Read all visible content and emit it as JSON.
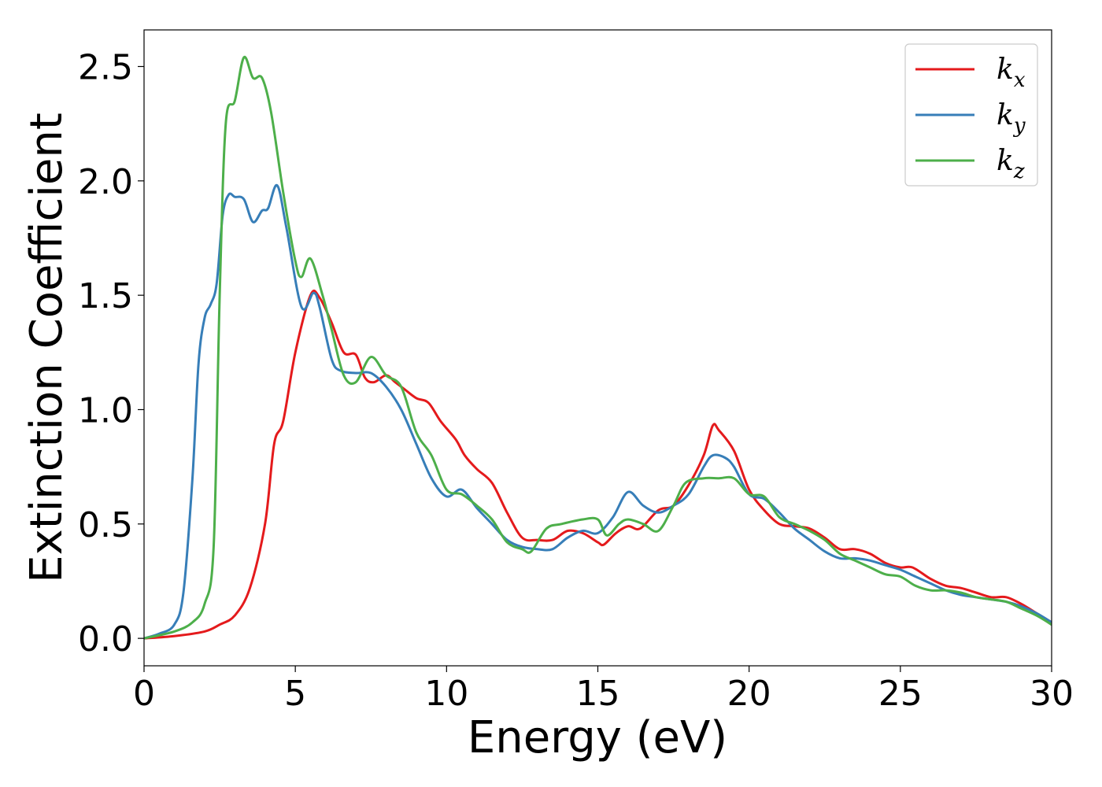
{
  "chart_data": {
    "type": "line",
    "xlabel": "Energy (eV)",
    "ylabel": "Extinction Coefficient",
    "xlim": [
      0,
      30
    ],
    "ylim": [
      -0.12,
      2.66
    ],
    "xticks": [
      0,
      5,
      10,
      15,
      20,
      25,
      30
    ],
    "xtick_labels": [
      "0",
      "5",
      "10",
      "15",
      "20",
      "25",
      "30"
    ],
    "yticks": [
      0.0,
      0.5,
      1.0,
      1.5,
      2.0,
      2.5
    ],
    "ytick_labels": [
      "0.0",
      "0.5",
      "1.0",
      "1.5",
      "2.0",
      "2.5"
    ],
    "grid": false,
    "legend_position": "top-right",
    "series": [
      {
        "name": "k",
        "subscript": "x",
        "color": "#e41a1c",
        "points": [
          [
            0,
            0
          ],
          [
            1,
            0.01
          ],
          [
            2,
            0.03
          ],
          [
            2.5,
            0.06
          ],
          [
            3,
            0.1
          ],
          [
            3.5,
            0.22
          ],
          [
            4,
            0.5
          ],
          [
            4.3,
            0.85
          ],
          [
            4.6,
            0.95
          ],
          [
            5,
            1.25
          ],
          [
            5.5,
            1.5
          ],
          [
            5.8,
            1.49
          ],
          [
            6.2,
            1.38
          ],
          [
            6.6,
            1.25
          ],
          [
            7,
            1.24
          ],
          [
            7.3,
            1.14
          ],
          [
            7.6,
            1.12
          ],
          [
            8,
            1.15
          ],
          [
            8.3,
            1.12
          ],
          [
            8.6,
            1.09
          ],
          [
            9,
            1.05
          ],
          [
            9.4,
            1.03
          ],
          [
            9.8,
            0.95
          ],
          [
            10.3,
            0.87
          ],
          [
            10.6,
            0.8
          ],
          [
            11,
            0.74
          ],
          [
            11.5,
            0.68
          ],
          [
            12,
            0.55
          ],
          [
            12.5,
            0.44
          ],
          [
            13,
            0.43
          ],
          [
            13.5,
            0.43
          ],
          [
            14,
            0.47
          ],
          [
            14.5,
            0.46
          ],
          [
            15,
            0.42
          ],
          [
            15.2,
            0.41
          ],
          [
            15.6,
            0.46
          ],
          [
            16,
            0.49
          ],
          [
            16.4,
            0.48
          ],
          [
            17,
            0.56
          ],
          [
            17.5,
            0.58
          ],
          [
            18,
            0.67
          ],
          [
            18.5,
            0.8
          ],
          [
            18.8,
            0.93
          ],
          [
            19,
            0.91
          ],
          [
            19.5,
            0.82
          ],
          [
            20,
            0.65
          ],
          [
            20.5,
            0.56
          ],
          [
            21,
            0.5
          ],
          [
            21.5,
            0.49
          ],
          [
            22,
            0.48
          ],
          [
            22.5,
            0.44
          ],
          [
            23,
            0.39
          ],
          [
            23.5,
            0.39
          ],
          [
            24,
            0.37
          ],
          [
            24.5,
            0.33
          ],
          [
            25,
            0.31
          ],
          [
            25.4,
            0.31
          ],
          [
            26,
            0.26
          ],
          [
            26.5,
            0.23
          ],
          [
            27,
            0.22
          ],
          [
            27.5,
            0.2
          ],
          [
            28,
            0.18
          ],
          [
            28.5,
            0.18
          ],
          [
            29,
            0.15
          ],
          [
            29.5,
            0.11
          ],
          [
            30,
            0.07
          ]
        ]
      },
      {
        "name": "k",
        "subscript": "y",
        "color": "#377eb8",
        "points": [
          [
            0,
            0
          ],
          [
            0.5,
            0.02
          ],
          [
            1,
            0.06
          ],
          [
            1.3,
            0.2
          ],
          [
            1.6,
            0.7
          ],
          [
            1.8,
            1.2
          ],
          [
            2,
            1.4
          ],
          [
            2.2,
            1.46
          ],
          [
            2.4,
            1.55
          ],
          [
            2.6,
            1.85
          ],
          [
            2.8,
            1.94
          ],
          [
            3,
            1.93
          ],
          [
            3.3,
            1.92
          ],
          [
            3.6,
            1.82
          ],
          [
            3.9,
            1.87
          ],
          [
            4.1,
            1.88
          ],
          [
            4.4,
            1.98
          ],
          [
            4.7,
            1.8
          ],
          [
            5.2,
            1.45
          ],
          [
            5.6,
            1.51
          ],
          [
            5.8,
            1.45
          ],
          [
            6.2,
            1.22
          ],
          [
            6.5,
            1.17
          ],
          [
            7,
            1.16
          ],
          [
            7.5,
            1.16
          ],
          [
            8,
            1.1
          ],
          [
            8.5,
            1.0
          ],
          [
            9,
            0.85
          ],
          [
            9.5,
            0.7
          ],
          [
            10,
            0.62
          ],
          [
            10.5,
            0.65
          ],
          [
            11,
            0.57
          ],
          [
            11.5,
            0.5
          ],
          [
            12,
            0.43
          ],
          [
            12.5,
            0.4
          ],
          [
            13,
            0.39
          ],
          [
            13.5,
            0.39
          ],
          [
            14,
            0.44
          ],
          [
            14.5,
            0.47
          ],
          [
            15,
            0.46
          ],
          [
            15.5,
            0.53
          ],
          [
            16,
            0.64
          ],
          [
            16.5,
            0.58
          ],
          [
            17,
            0.55
          ],
          [
            17.5,
            0.58
          ],
          [
            18,
            0.63
          ],
          [
            18.5,
            0.75
          ],
          [
            18.8,
            0.8
          ],
          [
            19.2,
            0.79
          ],
          [
            19.5,
            0.75
          ],
          [
            20,
            0.63
          ],
          [
            20.5,
            0.61
          ],
          [
            21,
            0.55
          ],
          [
            21.5,
            0.48
          ],
          [
            22,
            0.43
          ],
          [
            22.5,
            0.38
          ],
          [
            23,
            0.35
          ],
          [
            23.5,
            0.35
          ],
          [
            24,
            0.34
          ],
          [
            24.5,
            0.32
          ],
          [
            25,
            0.3
          ],
          [
            25.5,
            0.27
          ],
          [
            26,
            0.24
          ],
          [
            26.5,
            0.21
          ],
          [
            27,
            0.19
          ],
          [
            27.5,
            0.18
          ],
          [
            28,
            0.17
          ],
          [
            28.5,
            0.16
          ],
          [
            29,
            0.14
          ],
          [
            29.5,
            0.11
          ],
          [
            30,
            0.07
          ]
        ]
      },
      {
        "name": "k",
        "subscript": "z",
        "color": "#4daf4a",
        "points": [
          [
            0,
            0
          ],
          [
            1,
            0.03
          ],
          [
            1.6,
            0.07
          ],
          [
            2,
            0.15
          ],
          [
            2.3,
            0.4
          ],
          [
            2.5,
            1.5
          ],
          [
            2.7,
            2.25
          ],
          [
            3,
            2.35
          ],
          [
            3.3,
            2.54
          ],
          [
            3.6,
            2.45
          ],
          [
            3.9,
            2.45
          ],
          [
            4.2,
            2.3
          ],
          [
            4.6,
            1.95
          ],
          [
            5,
            1.65
          ],
          [
            5.2,
            1.58
          ],
          [
            5.5,
            1.66
          ],
          [
            5.9,
            1.5
          ],
          [
            6.2,
            1.35
          ],
          [
            6.6,
            1.15
          ],
          [
            7,
            1.12
          ],
          [
            7.5,
            1.23
          ],
          [
            8,
            1.15
          ],
          [
            8.5,
            1.1
          ],
          [
            9,
            0.9
          ],
          [
            9.5,
            0.8
          ],
          [
            10,
            0.65
          ],
          [
            10.5,
            0.63
          ],
          [
            11,
            0.58
          ],
          [
            11.5,
            0.52
          ],
          [
            12,
            0.42
          ],
          [
            12.5,
            0.39
          ],
          [
            12.8,
            0.38
          ],
          [
            13.3,
            0.48
          ],
          [
            13.8,
            0.5
          ],
          [
            14.5,
            0.52
          ],
          [
            15,
            0.52
          ],
          [
            15.3,
            0.45
          ],
          [
            15.7,
            0.5
          ],
          [
            16,
            0.52
          ],
          [
            16.5,
            0.5
          ],
          [
            17,
            0.47
          ],
          [
            17.5,
            0.58
          ],
          [
            17.9,
            0.68
          ],
          [
            18.5,
            0.7
          ],
          [
            19,
            0.7
          ],
          [
            19.5,
            0.7
          ],
          [
            20,
            0.63
          ],
          [
            20.5,
            0.62
          ],
          [
            21,
            0.53
          ],
          [
            21.5,
            0.5
          ],
          [
            22,
            0.47
          ],
          [
            22.5,
            0.43
          ],
          [
            23,
            0.37
          ],
          [
            23.5,
            0.34
          ],
          [
            24,
            0.31
          ],
          [
            24.5,
            0.28
          ],
          [
            25,
            0.27
          ],
          [
            25.5,
            0.23
          ],
          [
            26,
            0.21
          ],
          [
            26.5,
            0.21
          ],
          [
            27,
            0.2
          ],
          [
            27.5,
            0.18
          ],
          [
            28,
            0.17
          ],
          [
            28.5,
            0.16
          ],
          [
            29,
            0.13
          ],
          [
            29.5,
            0.1
          ],
          [
            30,
            0.06
          ]
        ]
      }
    ]
  }
}
